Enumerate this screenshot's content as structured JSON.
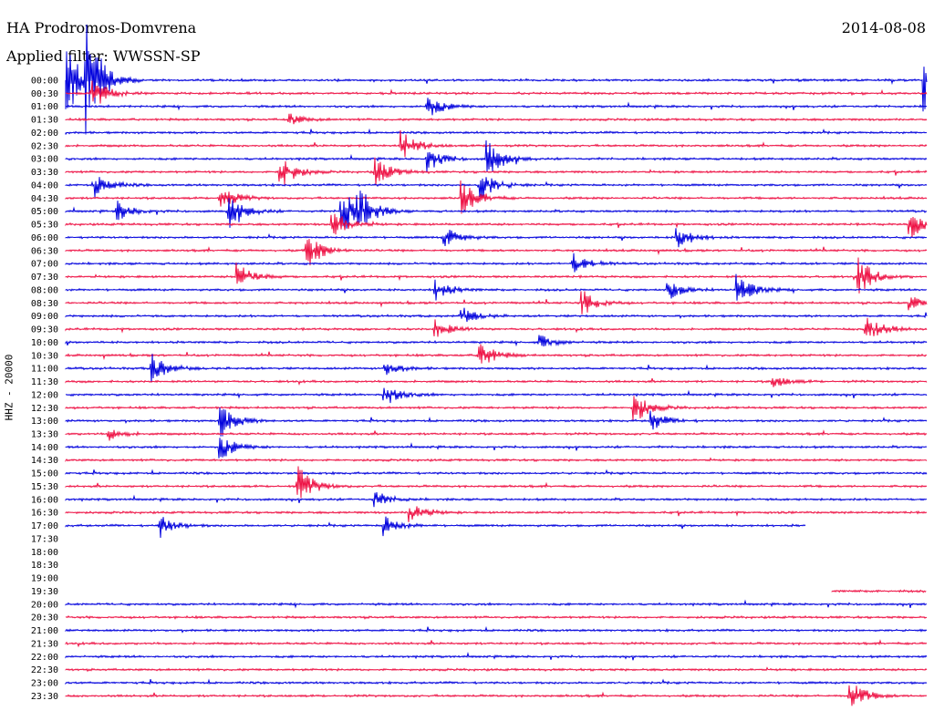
{
  "header": {
    "station": "HA Prodromos-Domvrena",
    "date": "2014-08-08",
    "filter": "Applied filter: WWSSN-SP"
  },
  "colors": {
    "trace_a": "#0000dd",
    "trace_b": "#ee1144",
    "background": "#ffffff"
  },
  "chart_data": {
    "type": "line",
    "title": "HA Prodromos-Domvrena",
    "ylabel": "HHZ - 20000",
    "rows": [
      {
        "label": "00:00",
        "color": "a",
        "start": 0.0,
        "end": 1.0
      },
      {
        "label": "00:30",
        "color": "b",
        "start": 0.0,
        "end": 1.0
      },
      {
        "label": "01:00",
        "color": "a",
        "start": 0.0,
        "end": 1.0
      },
      {
        "label": "01:30",
        "color": "b",
        "start": 0.0,
        "end": 1.0
      },
      {
        "label": "02:00",
        "color": "a",
        "start": 0.0,
        "end": 1.0
      },
      {
        "label": "02:30",
        "color": "b",
        "start": 0.0,
        "end": 1.0
      },
      {
        "label": "03:00",
        "color": "a",
        "start": 0.0,
        "end": 1.0
      },
      {
        "label": "03:30",
        "color": "b",
        "start": 0.0,
        "end": 1.0
      },
      {
        "label": "04:00",
        "color": "a",
        "start": 0.0,
        "end": 1.0
      },
      {
        "label": "04:30",
        "color": "b",
        "start": 0.0,
        "end": 1.0
      },
      {
        "label": "05:00",
        "color": "a",
        "start": 0.0,
        "end": 1.0
      },
      {
        "label": "05:30",
        "color": "b",
        "start": 0.0,
        "end": 1.0
      },
      {
        "label": "06:00",
        "color": "a",
        "start": 0.0,
        "end": 1.0
      },
      {
        "label": "06:30",
        "color": "b",
        "start": 0.0,
        "end": 1.0
      },
      {
        "label": "07:00",
        "color": "a",
        "start": 0.0,
        "end": 1.0
      },
      {
        "label": "07:30",
        "color": "b",
        "start": 0.0,
        "end": 1.0
      },
      {
        "label": "08:00",
        "color": "a",
        "start": 0.0,
        "end": 1.0
      },
      {
        "label": "08:30",
        "color": "b",
        "start": 0.0,
        "end": 1.0
      },
      {
        "label": "09:00",
        "color": "a",
        "start": 0.0,
        "end": 1.0
      },
      {
        "label": "09:30",
        "color": "b",
        "start": 0.0,
        "end": 1.0
      },
      {
        "label": "10:00",
        "color": "a",
        "start": 0.0,
        "end": 1.0
      },
      {
        "label": "10:30",
        "color": "b",
        "start": 0.0,
        "end": 1.0
      },
      {
        "label": "11:00",
        "color": "a",
        "start": 0.0,
        "end": 1.0
      },
      {
        "label": "11:30",
        "color": "b",
        "start": 0.0,
        "end": 1.0
      },
      {
        "label": "12:00",
        "color": "a",
        "start": 0.0,
        "end": 1.0
      },
      {
        "label": "12:30",
        "color": "b",
        "start": 0.0,
        "end": 1.0
      },
      {
        "label": "13:00",
        "color": "a",
        "start": 0.0,
        "end": 1.0
      },
      {
        "label": "13:30",
        "color": "b",
        "start": 0.0,
        "end": 1.0
      },
      {
        "label": "14:00",
        "color": "a",
        "start": 0.0,
        "end": 1.0
      },
      {
        "label": "14:30",
        "color": "b",
        "start": 0.0,
        "end": 1.0
      },
      {
        "label": "15:00",
        "color": "a",
        "start": 0.0,
        "end": 1.0
      },
      {
        "label": "15:30",
        "color": "b",
        "start": 0.0,
        "end": 1.0
      },
      {
        "label": "16:00",
        "color": "a",
        "start": 0.0,
        "end": 1.0
      },
      {
        "label": "16:30",
        "color": "b",
        "start": 0.0,
        "end": 1.0
      },
      {
        "label": "17:00",
        "color": "a",
        "start": 0.0,
        "end": 0.86
      },
      {
        "label": "17:30",
        "color": "b",
        "start": 0.0,
        "end": 0.0
      },
      {
        "label": "18:00",
        "color": "a",
        "start": 0.0,
        "end": 0.0
      },
      {
        "label": "18:30",
        "color": "b",
        "start": 0.0,
        "end": 0.0
      },
      {
        "label": "19:00",
        "color": "a",
        "start": 0.0,
        "end": 0.0
      },
      {
        "label": "19:30",
        "color": "b",
        "start": 0.89,
        "end": 1.0
      },
      {
        "label": "20:00",
        "color": "a",
        "start": 0.0,
        "end": 1.0
      },
      {
        "label": "20:30",
        "color": "b",
        "start": 0.0,
        "end": 1.0
      },
      {
        "label": "21:00",
        "color": "a",
        "start": 0.0,
        "end": 1.0
      },
      {
        "label": "21:30",
        "color": "b",
        "start": 0.0,
        "end": 1.0
      },
      {
        "label": "22:00",
        "color": "a",
        "start": 0.0,
        "end": 1.0
      },
      {
        "label": "22:30",
        "color": "b",
        "start": 0.0,
        "end": 1.0
      },
      {
        "label": "23:00",
        "color": "a",
        "start": 0.0,
        "end": 1.0
      },
      {
        "label": "23:30",
        "color": "b",
        "start": 0.0,
        "end": 1.0
      }
    ],
    "events": [
      {
        "row": 0,
        "t": 0.0,
        "amp": 3.5
      },
      {
        "row": 0,
        "t": 0.024,
        "amp": 4.5
      },
      {
        "row": 0,
        "t": 0.997,
        "amp": 2.5
      },
      {
        "row": 1,
        "t": 0.03,
        "amp": 1.5
      },
      {
        "row": 2,
        "t": 0.42,
        "amp": 1.0
      },
      {
        "row": 3,
        "t": 0.26,
        "amp": 0.5
      },
      {
        "row": 5,
        "t": 0.39,
        "amp": 1.2
      },
      {
        "row": 6,
        "t": 0.49,
        "amp": 1.6
      },
      {
        "row": 6,
        "t": 0.42,
        "amp": 1.0
      },
      {
        "row": 7,
        "t": 0.25,
        "amp": 1.4
      },
      {
        "row": 7,
        "t": 0.36,
        "amp": 1.2
      },
      {
        "row": 8,
        "t": 0.48,
        "amp": 1.4
      },
      {
        "row": 8,
        "t": 0.035,
        "amp": 1.0
      },
      {
        "row": 9,
        "t": 0.18,
        "amp": 1.0
      },
      {
        "row": 9,
        "t": 0.46,
        "amp": 1.4
      },
      {
        "row": 10,
        "t": 0.19,
        "amp": 1.4
      },
      {
        "row": 10,
        "t": 0.32,
        "amp": 2.2
      },
      {
        "row": 10,
        "t": 0.34,
        "amp": 1.6
      },
      {
        "row": 10,
        "t": 0.06,
        "amp": 0.8
      },
      {
        "row": 11,
        "t": 0.31,
        "amp": 1.2
      },
      {
        "row": 11,
        "t": 0.98,
        "amp": 1.2
      },
      {
        "row": 12,
        "t": 0.44,
        "amp": 0.9
      },
      {
        "row": 12,
        "t": 0.71,
        "amp": 1.0
      },
      {
        "row": 13,
        "t": 0.28,
        "amp": 1.6
      },
      {
        "row": 14,
        "t": 0.59,
        "amp": 1.0
      },
      {
        "row": 15,
        "t": 0.2,
        "amp": 1.2
      },
      {
        "row": 15,
        "t": 0.92,
        "amp": 1.6
      },
      {
        "row": 16,
        "t": 0.7,
        "amp": 0.8
      },
      {
        "row": 16,
        "t": 0.43,
        "amp": 0.8
      },
      {
        "row": 16,
        "t": 0.78,
        "amp": 1.3
      },
      {
        "row": 17,
        "t": 0.6,
        "amp": 1.0
      },
      {
        "row": 17,
        "t": 0.98,
        "amp": 0.6
      },
      {
        "row": 18,
        "t": 0.46,
        "amp": 0.7
      },
      {
        "row": 19,
        "t": 0.43,
        "amp": 0.8
      },
      {
        "row": 19,
        "t": 0.93,
        "amp": 1.4
      },
      {
        "row": 20,
        "t": 0.55,
        "amp": 0.6
      },
      {
        "row": 21,
        "t": 0.48,
        "amp": 1.2
      },
      {
        "row": 22,
        "t": 0.1,
        "amp": 1.2
      },
      {
        "row": 22,
        "t": 0.37,
        "amp": 0.6
      },
      {
        "row": 23,
        "t": 0.82,
        "amp": 0.6
      },
      {
        "row": 24,
        "t": 0.37,
        "amp": 1.1
      },
      {
        "row": 25,
        "t": 0.66,
        "amp": 1.4
      },
      {
        "row": 26,
        "t": 0.18,
        "amp": 1.4
      },
      {
        "row": 26,
        "t": 0.68,
        "amp": 0.8
      },
      {
        "row": 27,
        "t": 0.05,
        "amp": 0.5
      },
      {
        "row": 28,
        "t": 0.18,
        "amp": 1.0
      },
      {
        "row": 31,
        "t": 0.27,
        "amp": 1.6
      },
      {
        "row": 32,
        "t": 0.36,
        "amp": 0.6
      },
      {
        "row": 33,
        "t": 0.4,
        "amp": 0.8
      },
      {
        "row": 34,
        "t": 0.11,
        "amp": 0.9
      },
      {
        "row": 34,
        "t": 0.37,
        "amp": 0.8
      },
      {
        "row": 47,
        "t": 0.91,
        "amp": 1.4
      }
    ]
  }
}
